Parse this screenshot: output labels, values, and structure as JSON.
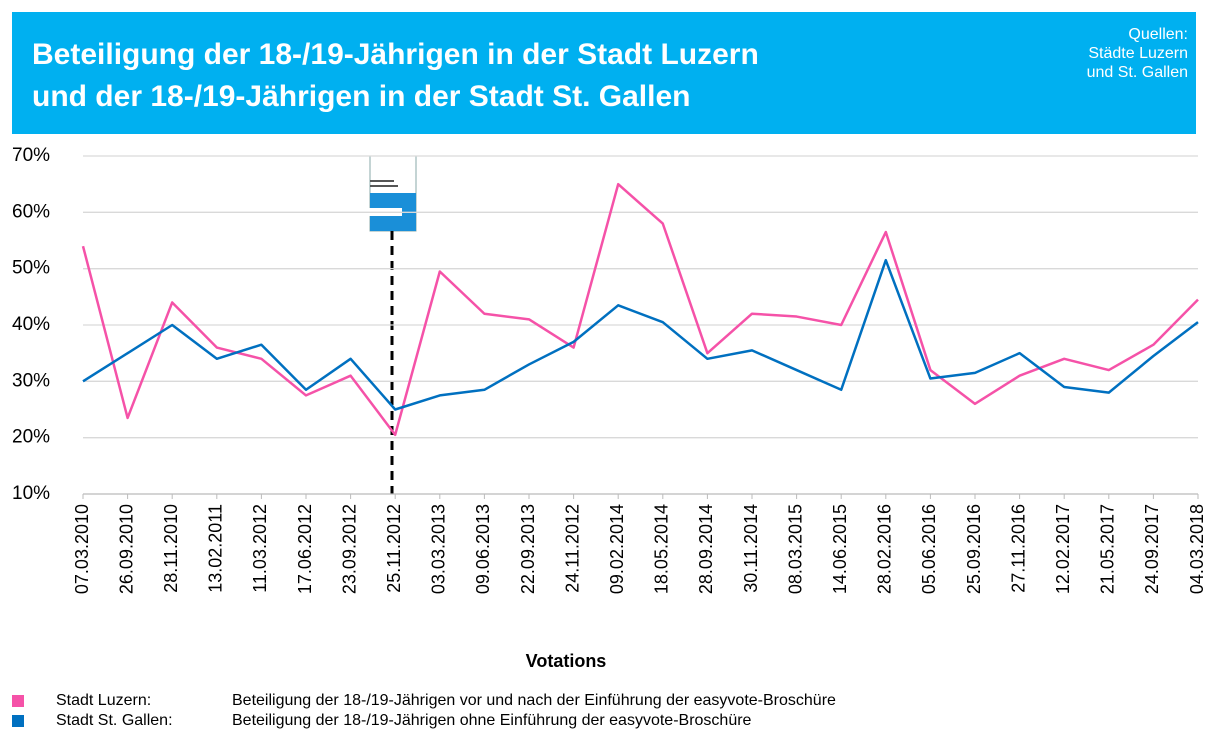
{
  "chart_data": {
    "type": "line",
    "title": [
      "Beteiligung der 18-/19-Jährigen in der Stadt Luzern",
      "und der 18-/19-Jährigen in der Stadt St. Gallen"
    ],
    "source": [
      "Quellen:",
      "Städte Luzern",
      "und St. Gallen"
    ],
    "xlabel": "Votations",
    "categories": [
      "07.03.2010",
      "26.09.2010",
      "28.11.2010",
      "13.02.2011",
      "11.03.2012",
      "17.06.2012",
      "23.09.2012",
      "25.11.2012",
      "03.03.2013",
      "09.06.2013",
      "22.09.2013",
      "24.11.2012",
      "09.02.2014",
      "18.05.2014",
      "28.09.2014",
      "30.11.2014",
      "08.03.2015",
      "14.06.2015",
      "28.02.2016",
      "05.06.2016",
      "25.09.2016",
      "27.11.2016",
      "12.02.2017",
      "21.05.2017",
      "24.09.2017",
      "04.03.2018"
    ],
    "series": [
      {
        "name": "Stadt Luzern:",
        "description": "Beteiligung der 18-/19-Jährigen vor und nach der Einführung der easyvote-Broschüre",
        "color": "#f552a8",
        "values": [
          54,
          23.5,
          44,
          36,
          34,
          27.5,
          31,
          20.5,
          49.5,
          42,
          41,
          36,
          65,
          58,
          35,
          42,
          41.5,
          40,
          56.5,
          32,
          26,
          31,
          34,
          32,
          36.5,
          44.5
        ]
      },
      {
        "name": "Stadt St. Gallen:",
        "description": "Beteiligung der 18-/19-Jährigen ohne Einführung der easyvote-Broschüre",
        "color": "#0070c0",
        "values": [
          30,
          35,
          40,
          34,
          36.5,
          28.5,
          34,
          25,
          27.5,
          28.5,
          33,
          37,
          43.5,
          40.5,
          34,
          35.5,
          32,
          28.5,
          51.5,
          30.5,
          31.5,
          35,
          29,
          28,
          34.5,
          40.5
        ]
      }
    ],
    "ylim": [
      10,
      70
    ],
    "yticks": [
      {
        "value": 10,
        "label": "10%"
      },
      {
        "value": 20,
        "label": "20%"
      },
      {
        "value": 30,
        "label": "30%"
      },
      {
        "value": 40,
        "label": "40%"
      },
      {
        "value": 50,
        "label": "50%"
      },
      {
        "value": 60,
        "label": "60%"
      },
      {
        "value": 70,
        "label": "70%"
      }
    ],
    "grid": true
  }
}
